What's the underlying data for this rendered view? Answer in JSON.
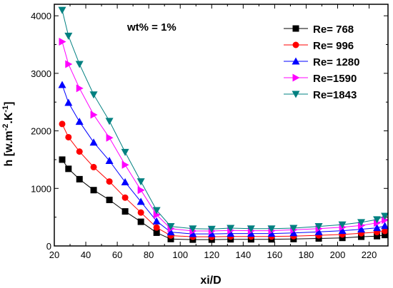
{
  "chart_data": {
    "type": "line",
    "title": "",
    "annotation": "wt% = 1%",
    "xlabel": "xi/D",
    "ylabel_parts": [
      "h [w.m",
      "-2",
      ".K",
      "-1",
      "]"
    ],
    "xlim": [
      20,
      232
    ],
    "ylim": [
      0,
      4200
    ],
    "xticks": [
      20,
      40,
      60,
      80,
      100,
      120,
      140,
      160,
      180,
      200,
      220
    ],
    "yticks": [
      0,
      1000,
      2000,
      3000,
      4000
    ],
    "grid": false,
    "legend_position": "top-right",
    "x": [
      25,
      29,
      36,
      45,
      55,
      65,
      75,
      85,
      94,
      108,
      120,
      132,
      145,
      158,
      172,
      188,
      203,
      215,
      225,
      230
    ],
    "series": [
      {
        "name": "Re= 768",
        "color": "#000000",
        "marker": "square",
        "values": [
          1500,
          1340,
          1160,
          970,
          800,
          600,
          420,
          230,
          120,
          110,
          110,
          115,
          115,
          115,
          120,
          130,
          140,
          160,
          170,
          190
        ]
      },
      {
        "name": "Re= 996",
        "color": "#ff0000",
        "marker": "circle",
        "values": [
          2120,
          1890,
          1640,
          1370,
          1120,
          840,
          580,
          320,
          180,
          160,
          160,
          165,
          165,
          165,
          170,
          185,
          200,
          220,
          240,
          260
        ]
      },
      {
        "name": "Re= 1280",
        "color": "#0000ff",
        "marker": "triangle-up",
        "values": [
          2800,
          2490,
          2160,
          1800,
          1480,
          1110,
          770,
          430,
          240,
          210,
          210,
          215,
          215,
          215,
          225,
          245,
          265,
          290,
          315,
          350
        ]
      },
      {
        "name": "Re=1590",
        "color": "#ff00ff",
        "marker": "triangle-right",
        "values": [
          3550,
          3160,
          2740,
          2280,
          1880,
          1410,
          970,
          540,
          300,
          260,
          260,
          270,
          265,
          265,
          280,
          300,
          325,
          355,
          400,
          450
        ]
      },
      {
        "name": "Re=1843",
        "color": "#008080",
        "marker": "triangle-down",
        "values": [
          4100,
          3650,
          3160,
          2630,
          2170,
          1630,
          1120,
          620,
          340,
          300,
          295,
          310,
          300,
          300,
          310,
          340,
          370,
          410,
          460,
          520
        ]
      }
    ]
  }
}
